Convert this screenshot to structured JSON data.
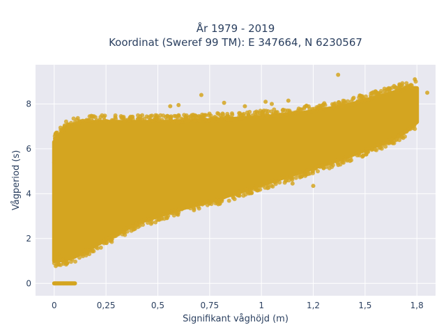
{
  "chart_data": {
    "type": "scatter",
    "title_line1": "År 1979 - 2019",
    "title_line2": "Koordinat (Sweref 99 TM): E 347664, N 6230567",
    "xlabel": "Signifikant våghöjd (m)",
    "ylabel": "Vågperiod (s)",
    "xlim": [
      -0.09,
      1.84
    ],
    "ylim": [
      -0.55,
      9.75
    ],
    "x_ticks": [
      0,
      0.25,
      0.5,
      0.75,
      1,
      1.25,
      1.5,
      1.75
    ],
    "x_tick_labels": [
      "0",
      "0,25",
      "0,5",
      "0,75",
      "1",
      "1,2",
      "1,5",
      "1,8"
    ],
    "y_ticks": [
      0,
      2,
      4,
      6,
      8
    ],
    "y_tick_labels": [
      "0",
      "2",
      "4",
      "6",
      "8"
    ],
    "grid": true,
    "marker_color": "#d4a520",
    "plot_bg": "#e8e8f0",
    "envelope": {
      "x": [
        0,
        0.05,
        0.1,
        0.2,
        0.3,
        0.4,
        0.5,
        0.6,
        0.8,
        1.0,
        1.2,
        1.4,
        1.6,
        1.7,
        1.75
      ],
      "y_min": [
        1.0,
        1.05,
        1.2,
        1.7,
        2.2,
        2.7,
        3.0,
        3.3,
        3.8,
        4.4,
        5.0,
        5.6,
        6.3,
        6.8,
        7.2
      ],
      "y_max": [
        6.3,
        6.9,
        7.1,
        7.2,
        7.2,
        7.2,
        7.2,
        7.2,
        7.3,
        7.4,
        7.6,
        7.9,
        8.4,
        8.7,
        8.7
      ]
    },
    "zero_period_points": {
      "x_range": [
        0,
        0.1
      ],
      "y": 0
    },
    "outliers": [
      {
        "x": 1.37,
        "y": 9.3
      },
      {
        "x": 0.71,
        "y": 8.4
      },
      {
        "x": 0.82,
        "y": 8.05
      },
      {
        "x": 0.6,
        "y": 7.95
      },
      {
        "x": 0.56,
        "y": 7.9
      },
      {
        "x": 1.02,
        "y": 8.1
      },
      {
        "x": 1.13,
        "y": 8.15
      },
      {
        "x": 1.74,
        "y": 9.1
      },
      {
        "x": 1.64,
        "y": 8.8
      },
      {
        "x": 1.8,
        "y": 8.5
      },
      {
        "x": 1.05,
        "y": 8.0
      },
      {
        "x": 0.92,
        "y": 7.9
      },
      {
        "x": 1.25,
        "y": 4.35
      },
      {
        "x": 1.15,
        "y": 4.45
      },
      {
        "x": 0.0,
        "y": 5.4
      },
      {
        "x": 0.02,
        "y": 1.3
      },
      {
        "x": 0.05,
        "y": 7.0
      }
    ]
  }
}
